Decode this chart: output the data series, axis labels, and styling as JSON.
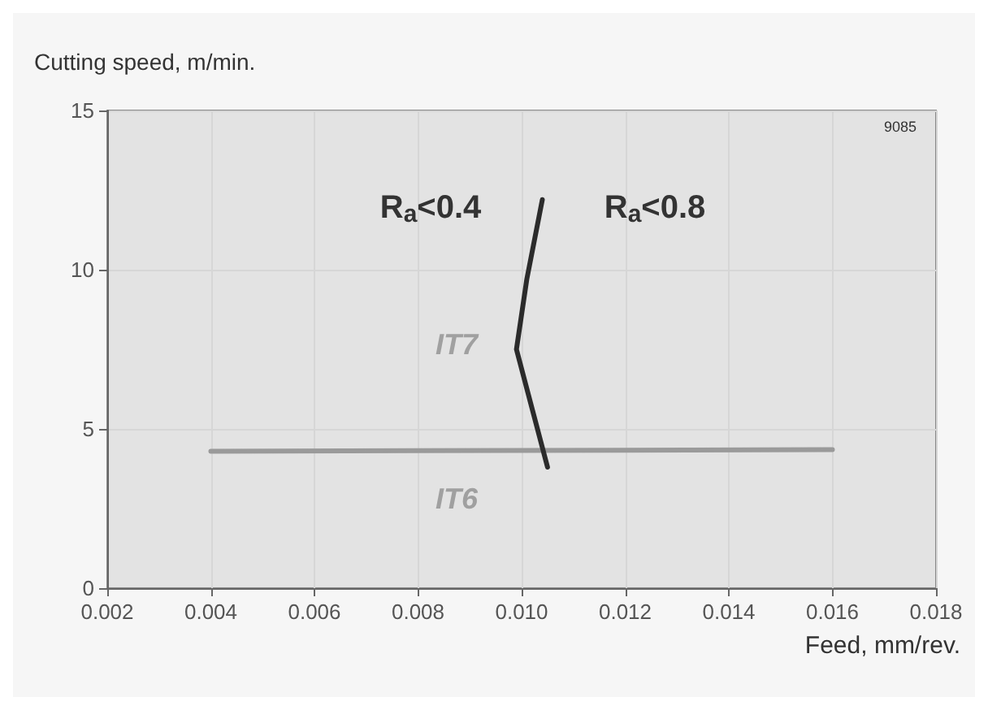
{
  "chart_data": {
    "type": "line",
    "xlabel": "Feed, mm/rev.",
    "ylabel": "Cutting speed, m/min.",
    "xlim": [
      0.002,
      0.018
    ],
    "xticks": [
      {
        "value": 0.002,
        "label": "0.002"
      },
      {
        "value": 0.004,
        "label": "0.004"
      },
      {
        "value": 0.006,
        "label": "0.006"
      },
      {
        "value": 0.008,
        "label": "0.008"
      },
      {
        "value": 0.01,
        "label": "0.010"
      },
      {
        "value": 0.012,
        "label": "0.012"
      },
      {
        "value": 0.014,
        "label": "0.014"
      },
      {
        "value": 0.016,
        "label": "0.016"
      },
      {
        "value": 0.018,
        "label": "0.018"
      }
    ],
    "ylim": [
      0,
      15
    ],
    "yticks": [
      0,
      5,
      10,
      15
    ],
    "grid": true,
    "marker": "none",
    "line_style": "solid",
    "series": [
      {
        "color": "#9a9a9a",
        "x": [
          0.004,
          0.016
        ],
        "values": [
          4.3,
          4.35
        ]
      },
      {
        "color": "#2b2b2b",
        "x": [
          0.0104,
          0.0101,
          0.0099,
          0.0105
        ],
        "values": [
          12.2,
          9.7,
          7.5,
          3.8
        ]
      }
    ],
    "annotations": [
      "R$_{a}$<0.4",
      "R$_{a}$<0.8",
      "IT7",
      "IT6",
      "9085"
    ]
  }
}
